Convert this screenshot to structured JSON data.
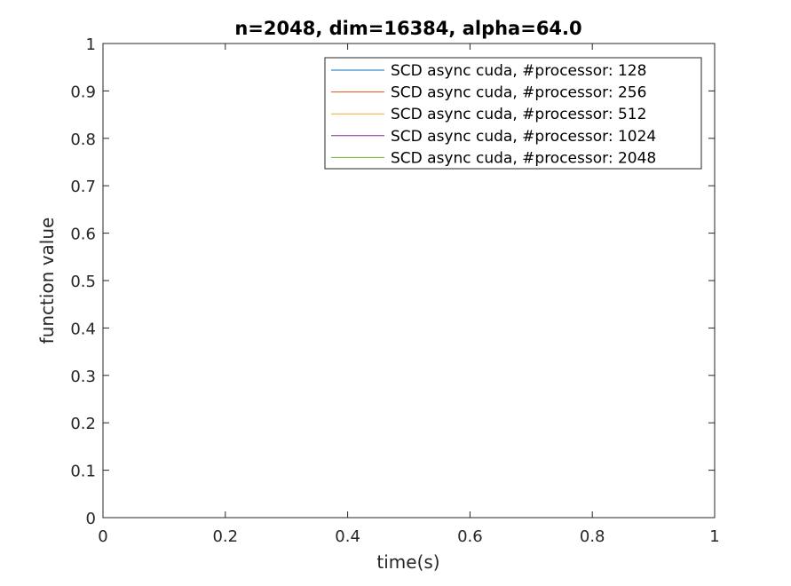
{
  "chart_data": {
    "type": "line",
    "title": "n=2048, dim=16384, alpha=64.0",
    "xlabel": "time(s)",
    "ylabel": "function value",
    "xlim": [
      0,
      1
    ],
    "ylim": [
      0,
      1
    ],
    "xticks": [
      0,
      0.2,
      0.4,
      0.6,
      0.8,
      1
    ],
    "xtick_labels": [
      "0",
      "0.2",
      "0.4",
      "0.6",
      "0.8",
      "1"
    ],
    "yticks": [
      0,
      0.1,
      0.2,
      0.3,
      0.4,
      0.5,
      0.6,
      0.7,
      0.8,
      0.9,
      1
    ],
    "ytick_labels": [
      "0",
      "0.1",
      "0.2",
      "0.3",
      "0.4",
      "0.5",
      "0.6",
      "0.7",
      "0.8",
      "0.9",
      "1"
    ],
    "grid": false,
    "legend_position": "top-right",
    "series": [
      {
        "name": "SCD  async  cuda, #processor: 128",
        "color": "#0072bd",
        "x": [],
        "y": []
      },
      {
        "name": "SCD  async  cuda, #processor: 256",
        "color": "#d95319",
        "x": [],
        "y": []
      },
      {
        "name": "SCD  async  cuda, #processor: 512",
        "color": "#edb120",
        "x": [],
        "y": []
      },
      {
        "name": "SCD  async  cuda, #processor: 1024",
        "color": "#7e2f8e",
        "x": [],
        "y": []
      },
      {
        "name": "SCD  async  cuda, #processor: 2048",
        "color": "#77ac30",
        "x": [],
        "y": []
      }
    ]
  }
}
